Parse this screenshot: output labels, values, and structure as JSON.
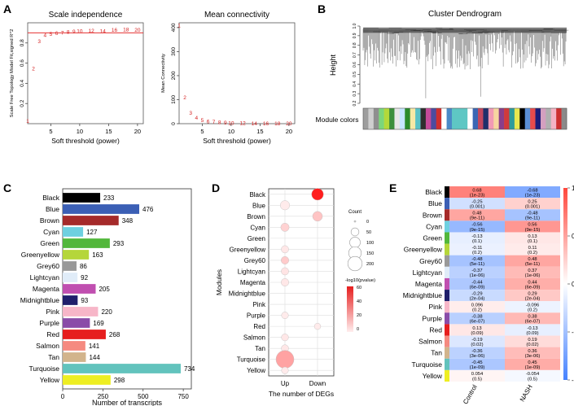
{
  "panels": {
    "a": "A",
    "b": "B",
    "c": "C",
    "d": "D",
    "e": "E"
  },
  "chart_data": [
    {
      "id": "scale_independence",
      "type": "scatter",
      "title": "Scale independence",
      "xlabel": "Soft threshold (power)",
      "ylabel": "Scale Free Topology Model Fit,signed R^2",
      "xlim": [
        1,
        21
      ],
      "ylim": [
        0,
        1
      ],
      "xticks": [
        5,
        10,
        15,
        20
      ],
      "yticks": [
        0.2,
        0.4,
        0.6,
        0.8
      ],
      "cutoff": 0.9,
      "x": [
        1,
        2,
        3,
        4,
        5,
        6,
        7,
        8,
        9,
        10,
        12,
        14,
        16,
        18,
        20
      ],
      "y": [
        0.03,
        0.55,
        0.82,
        0.88,
        0.89,
        0.9,
        0.905,
        0.91,
        0.915,
        0.92,
        0.925,
        0.92,
        0.93,
        0.935,
        0.93
      ],
      "labels": [
        "1",
        "2",
        "3",
        "4",
        "5",
        "6",
        "7",
        "8",
        "9",
        "10",
        "12",
        "14",
        "16",
        "18",
        "20"
      ]
    },
    {
      "id": "mean_connectivity",
      "type": "scatter",
      "title": "Mean connectivity",
      "xlabel": "Soft threshold (power)",
      "ylabel": "Mean Connectivity",
      "xlim": [
        1,
        21
      ],
      "ylim": [
        0,
        420
      ],
      "xticks": [
        5,
        10,
        15,
        20
      ],
      "yticks": [
        0,
        100,
        200,
        300,
        400
      ],
      "x": [
        1,
        2,
        3,
        4,
        5,
        6,
        7,
        8,
        9,
        10,
        12,
        14,
        16,
        18,
        20
      ],
      "y": [
        410,
        110,
        45,
        25,
        15,
        10,
        8,
        6,
        5,
        4,
        3,
        2,
        2,
        1,
        1
      ],
      "labels": [
        "1",
        "2",
        "3",
        "4",
        "5",
        "6",
        "7",
        "8",
        "9",
        "10",
        "12",
        "14",
        "16",
        "18",
        "20"
      ]
    },
    {
      "id": "cluster_dendrogram",
      "type": "dendrogram",
      "title": "Cluster Dendrogram",
      "ylabel": "Height",
      "yticks": [
        "0.2",
        "0.3",
        "0.4",
        "0.5",
        "0.6",
        "0.7",
        "0.8",
        "0.9",
        "1.0"
      ],
      "ylim": [
        0.2,
        1.0
      ],
      "colorbar_label": "Module colors",
      "colors": [
        "#9e9e9e",
        "#cfcfcf",
        "#8f8f8f",
        "#7bd67b",
        "#b3d93a",
        "#3c8f3c",
        "#e6e6e6",
        "#c6e6ff",
        "#2a8b2a",
        "#f6e9a6",
        "#58c2c7",
        "#2e2e2e",
        "#c54a9a",
        "#4c4ca0",
        "#cf2f2f",
        "#ffffff",
        "#4a89c7",
        "#5ec7c4",
        "#5ec7c4",
        "#5ec7c4",
        "#ffffff",
        "#3b67b4",
        "#c3475e",
        "#1f2f6b",
        "#f29ab5",
        "#f7d6a0",
        "#8a3e8a",
        "#d13a3a",
        "#2e9b9b",
        "#e7e750",
        "#000000",
        "#5a8fd6",
        "#e84b4b",
        "#1c1c7a",
        "#d4a0c0",
        "#b0b0b0",
        "#f4b2c4",
        "#cc2f2f",
        "#8a8a8a"
      ]
    },
    {
      "id": "module_sizes",
      "type": "bar",
      "orientation": "horizontal",
      "xlabel": "Number of transcripts",
      "xlim": [
        0,
        800
      ],
      "xticks": [
        0,
        250,
        500,
        750
      ],
      "categories": [
        "Black",
        "Blue",
        "Brown",
        "Cyan",
        "Green",
        "Greenyellow",
        "Grey60",
        "Lightcyan",
        "Magenta",
        "Midnightblue",
        "Pink",
        "Purple",
        "Red",
        "Salmon",
        "Tan",
        "Turquoise",
        "Yellow"
      ],
      "values": [
        233,
        476,
        348,
        127,
        293,
        163,
        86,
        92,
        205,
        93,
        220,
        169,
        268,
        141,
        144,
        734,
        298
      ],
      "colors": [
        "#000000",
        "#3b5fb5",
        "#a52a2a",
        "#6ed0e0",
        "#52b73b",
        "#b5d63a",
        "#999999",
        "#e0ecf8",
        "#c04fb0",
        "#1f1f6b",
        "#f7b6c8",
        "#8a4ca8",
        "#e61e1e",
        "#f58a80",
        "#d2b48c",
        "#62c3bd",
        "#eeee22"
      ]
    },
    {
      "id": "deg_dotplot",
      "type": "scatter",
      "xlabel": "The number of DEGs",
      "ylabel": "Modules",
      "x_categories": [
        "Up",
        "Down"
      ],
      "y_categories": [
        "Black",
        "Blue",
        "Brown",
        "Cyan",
        "Green",
        "Greenyellow",
        "Grey60",
        "Lightcyan",
        "Magenta",
        "Midnightblue",
        "Pink",
        "Purple",
        "Red",
        "Salmon",
        "Tan",
        "Turquoise",
        "Yellow"
      ],
      "legend_count_title": "Count",
      "legend_count_values": [
        0,
        50,
        100,
        150,
        200
      ],
      "legend_color_title": "-log10(pvalue)",
      "legend_color_ticks": [
        60,
        40,
        20,
        0
      ],
      "points": [
        {
          "module": "Black",
          "col": "Down",
          "count": 60,
          "logp": 60
        },
        {
          "module": "Blue",
          "col": "Up",
          "count": 25,
          "logp": 1
        },
        {
          "module": "Brown",
          "col": "Down",
          "count": 30,
          "logp": 12
        },
        {
          "module": "Cyan",
          "col": "Up",
          "count": 15,
          "logp": 8
        },
        {
          "module": "Greenyellow",
          "col": "Up",
          "count": 8,
          "logp": 2
        },
        {
          "module": "Grey60",
          "col": "Up",
          "count": 10,
          "logp": 10
        },
        {
          "module": "Lightcyan",
          "col": "Up",
          "count": 8,
          "logp": 3
        },
        {
          "module": "Magenta",
          "col": "Up",
          "count": 10,
          "logp": 2
        },
        {
          "module": "Purple",
          "col": "Up",
          "count": 5,
          "logp": 1
        },
        {
          "module": "Red",
          "col": "Down",
          "count": 3,
          "logp": 1
        },
        {
          "module": "Salmon",
          "col": "Up",
          "count": 6,
          "logp": 2
        },
        {
          "module": "Tan",
          "col": "Up",
          "count": 7,
          "logp": 2
        },
        {
          "module": "Turquoise",
          "col": "Up",
          "count": 210,
          "logp": 22
        },
        {
          "module": "Yellow",
          "col": "Up",
          "count": 5,
          "logp": 1
        }
      ]
    },
    {
      "id": "module_trait_heatmap",
      "type": "heatmap",
      "x_categories": [
        "Control",
        "NASH"
      ],
      "y_categories": [
        "Black",
        "Blue",
        "Brown",
        "Cyan",
        "Green",
        "Greenyellow",
        "Grey60",
        "Lightcyan",
        "Magenta",
        "Midnightblue",
        "Pink",
        "Purple",
        "Red",
        "Salmon",
        "Tan",
        "Turquoise",
        "Yellow"
      ],
      "module_colors": [
        "#000000",
        "#3b5fb5",
        "#a52a2a",
        "#6ed0e0",
        "#52b73b",
        "#b5d63a",
        "#999999",
        "#e0ecf8",
        "#c04fb0",
        "#1f1f6b",
        "#f7b6c8",
        "#8a4ca8",
        "#e61e1e",
        "#f58a80",
        "#d2b48c",
        "#62c3bd",
        "#eeee22"
      ],
      "colorbar_ticks": [
        "1",
        "0.5",
        "0",
        "-0.5",
        "-1"
      ],
      "cells": [
        [
          {
            "r": 0.68,
            "t": "0.68",
            "p": "(1e-23)"
          },
          {
            "r": -0.68,
            "t": "-0.68",
            "p": "(1e-23)"
          }
        ],
        [
          {
            "r": -0.25,
            "t": "-0.25",
            "p": "(0.001)"
          },
          {
            "r": 0.25,
            "t": "0.25",
            "p": "(0.001)"
          }
        ],
        [
          {
            "r": 0.48,
            "t": "0.48",
            "p": "(9e-11)"
          },
          {
            "r": -0.48,
            "t": "-0.48",
            "p": "(9e-11)"
          }
        ],
        [
          {
            "r": -0.56,
            "t": "-0.56",
            "p": "(9e-15)"
          },
          {
            "r": 0.56,
            "t": "0.56",
            "p": "(9e-15)"
          }
        ],
        [
          {
            "r": -0.13,
            "t": "-0.13",
            "p": "(0.1)"
          },
          {
            "r": 0.13,
            "t": "0.13",
            "p": "(0.1)"
          }
        ],
        [
          {
            "r": -0.11,
            "t": "-0.11",
            "p": "(0.2)"
          },
          {
            "r": 0.11,
            "t": "0.11",
            "p": "(0.2)"
          }
        ],
        [
          {
            "r": -0.48,
            "t": "-0.48",
            "p": "(5e-11)"
          },
          {
            "r": 0.48,
            "t": "0.48",
            "p": "(5e-11)"
          }
        ],
        [
          {
            "r": -0.37,
            "t": "-0.37",
            "p": "(1e-06)"
          },
          {
            "r": 0.37,
            "t": "0.37",
            "p": "(1e-06)"
          }
        ],
        [
          {
            "r": -0.44,
            "t": "-0.44",
            "p": "(6e-09)"
          },
          {
            "r": 0.44,
            "t": "0.44",
            "p": "(6e-09)"
          }
        ],
        [
          {
            "r": -0.29,
            "t": "-0.29",
            "p": "(2e-04)"
          },
          {
            "r": 0.29,
            "t": "0.29",
            "p": "(2e-04)"
          }
        ],
        [
          {
            "r": 0.096,
            "t": "0.096",
            "p": "(0.2)"
          },
          {
            "r": -0.096,
            "t": "-0.096",
            "p": "(0.2)"
          }
        ],
        [
          {
            "r": -0.38,
            "t": "-0.38",
            "p": "(6e-07)"
          },
          {
            "r": 0.38,
            "t": "0.38",
            "p": "(6e-07)"
          }
        ],
        [
          {
            "r": 0.13,
            "t": "0.13",
            "p": "(0.09)"
          },
          {
            "r": -0.13,
            "t": "-0.13",
            "p": "(0.09)"
          }
        ],
        [
          {
            "r": -0.19,
            "t": "-0.19",
            "p": "(0.02)"
          },
          {
            "r": 0.19,
            "t": "0.19",
            "p": "(0.02)"
          }
        ],
        [
          {
            "r": -0.36,
            "t": "-0.36",
            "p": "(3e-06)"
          },
          {
            "r": 0.36,
            "t": "0.36",
            "p": "(3e-06)"
          }
        ],
        [
          {
            "r": -0.45,
            "t": "-0.45",
            "p": "(1e-09)"
          },
          {
            "r": 0.45,
            "t": "0.45",
            "p": "(1e-09)"
          }
        ],
        [
          {
            "r": 0.054,
            "t": "0.054",
            "p": "(0.5)"
          },
          {
            "r": -0.054,
            "t": "-0.054",
            "p": "(0.5)"
          }
        ]
      ]
    }
  ]
}
